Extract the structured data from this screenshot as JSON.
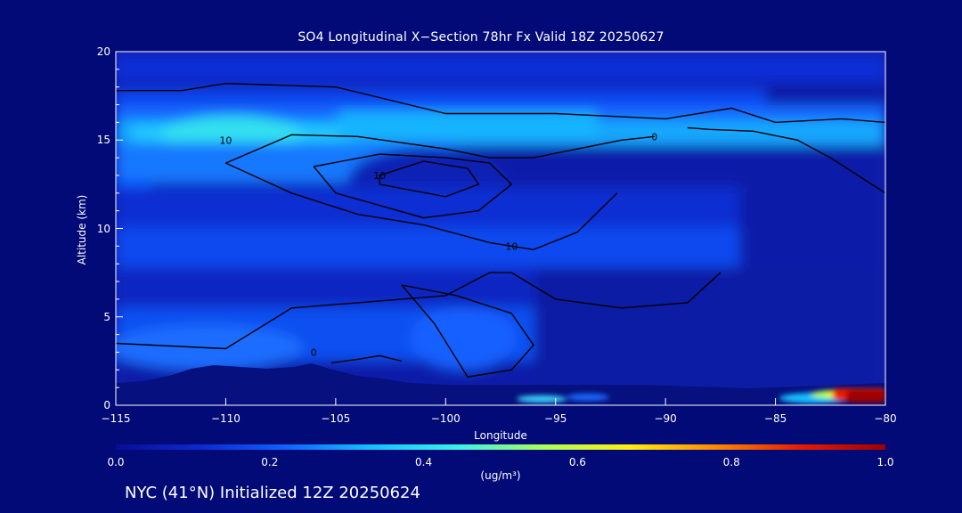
{
  "title": "SO4 Longitudinal X−Section 78hr  Fx Valid 18Z 20250627",
  "footer": "NYC (41°N) Initialized 12Z 20250624",
  "colorbar": {
    "title": "(ug/m³)",
    "ticks": [
      "0.0",
      "0.2",
      "0.4",
      "0.6",
      "0.8",
      "1.0"
    ],
    "colors": [
      "#0a0c96",
      "#0d2ad0",
      "#1062ff",
      "#18c0ff",
      "#3cf0e6",
      "#a8ff5a",
      "#ffee10",
      "#ff8a00",
      "#e81a00",
      "#a00000"
    ]
  },
  "chart_data": {
    "type": "heatmap",
    "title": "SO4 Longitudinal X−Section 78hr  Fx Valid 18Z 20250627",
    "xlabel": "Longitude",
    "ylabel": "Altitude (km)",
    "xlim": [
      -115,
      -80
    ],
    "ylim": [
      0,
      20
    ],
    "xticks": [
      -115,
      -110,
      -105,
      -100,
      -95,
      -90,
      -85,
      -80
    ],
    "xtick_labels": [
      "−115",
      "−110",
      "−105",
      "−100",
      "−95",
      "−90",
      "−85",
      "−80"
    ],
    "yticks": [
      0,
      5,
      10,
      15,
      20
    ],
    "ytick_labels": [
      "0",
      "5",
      "10",
      "15",
      "20"
    ],
    "value_range": [
      0.0,
      1.0
    ],
    "units": "ug/m³",
    "features": [
      {
        "lon": [
          -115,
          -80
        ],
        "alt": [
          14.2,
          15.8
        ],
        "value": 0.45
      },
      {
        "lon": [
          -115,
          -85
        ],
        "alt": [
          16,
          18
        ],
        "value": 0.2
      },
      {
        "lon": [
          -112,
          -102
        ],
        "alt": [
          14,
          15
        ],
        "value": 0.5
      },
      {
        "lon": [
          -105,
          -93
        ],
        "alt": [
          13,
          14.5
        ],
        "value": 0.3
      },
      {
        "lon": [
          -115,
          -85
        ],
        "alt": [
          9,
          11
        ],
        "value": 0.15
      },
      {
        "lon": [
          -115,
          -97
        ],
        "alt": [
          1.5,
          4.5
        ],
        "value": 0.3
      },
      {
        "lon": [
          -96,
          -93
        ],
        "alt": [
          0.3,
          0.6
        ],
        "value": 0.45
      },
      {
        "lon": [
          -84,
          -80
        ],
        "alt": [
          0,
          0.8
        ],
        "value": 1.0
      }
    ],
    "contour_labels": [
      {
        "lon": -110,
        "alt": 15,
        "text": "10"
      },
      {
        "lon": -103,
        "alt": 13,
        "text": "10"
      },
      {
        "lon": -97,
        "alt": 9,
        "text": "10"
      },
      {
        "lon": -90.5,
        "alt": 15.2,
        "text": "0"
      },
      {
        "lon": -106,
        "alt": 3,
        "text": "0"
      }
    ],
    "contour_lines": [
      {
        "lon": [
          -115,
          -112,
          -110,
          -105,
          -100,
          -95,
          -90,
          -87,
          -85,
          -82,
          -80
        ],
        "alt": [
          17.8,
          17.8,
          18.2,
          18.0,
          16.5,
          16.5,
          16.2,
          16.8,
          16.0,
          16.2,
          16.0
        ]
      },
      {
        "lon": [
          -89,
          -88,
          -86,
          -84,
          -82.5,
          -80
        ],
        "alt": [
          15.7,
          15.6,
          15.5,
          15.0,
          14.0,
          12.0
        ]
      },
      {
        "lon": [
          -110,
          -107,
          -104,
          -100,
          -98,
          -96,
          -94,
          -92,
          -90.5
        ],
        "alt": [
          13.7,
          15.3,
          15.2,
          14.5,
          14.0,
          14.0,
          14.5,
          15.0,
          15.2
        ]
      },
      {
        "lon": [
          -110,
          -107,
          -104,
          -101,
          -98,
          -96,
          -94,
          -92.2
        ],
        "alt": [
          13.7,
          12.0,
          10.8,
          10.2,
          9.2,
          8.8,
          9.8,
          12.0
        ]
      },
      {
        "lon": [
          -106,
          -103,
          -100,
          -98,
          -97,
          -98.5,
          -101,
          -105,
          -106
        ],
        "alt": [
          13.5,
          14.2,
          14.0,
          13.7,
          12.5,
          11.0,
          10.6,
          12.0,
          13.5
        ]
      },
      {
        "lon": [
          -103,
          -101,
          -99,
          -98.5,
          -100,
          -103,
          -103
        ],
        "alt": [
          13.0,
          13.8,
          13.4,
          12.5,
          11.8,
          12.5,
          13.0
        ]
      },
      {
        "lon": [
          -115,
          -110,
          -107,
          -104,
          -100,
          -98,
          -97,
          -95,
          -92,
          -89,
          -87.5
        ],
        "alt": [
          3.5,
          3.2,
          5.5,
          5.8,
          6.2,
          7.5,
          7.5,
          6.0,
          5.5,
          5.8,
          7.5
        ]
      },
      {
        "lon": [
          -102,
          -99.5,
          -97,
          -96,
          -97,
          -99,
          -100.5,
          -102
        ],
        "alt": [
          6.8,
          6.2,
          5.2,
          3.4,
          2.0,
          1.6,
          4.6,
          6.8
        ]
      },
      {
        "lon": [
          -105.2,
          -104,
          -103,
          -102
        ],
        "alt": [
          2.4,
          2.6,
          2.8,
          2.5
        ]
      }
    ]
  }
}
